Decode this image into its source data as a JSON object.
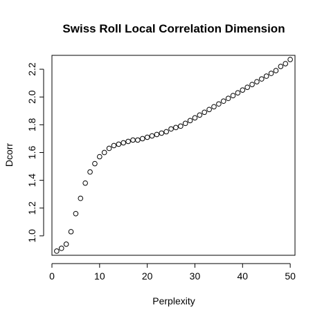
{
  "chart_data": {
    "type": "scatter",
    "title": "Swiss Roll Local Correlation Dimension",
    "xlabel": "Perplexity",
    "ylabel": "Dcorr",
    "xlim": [
      0,
      51
    ],
    "ylim": [
      0.86,
      2.3
    ],
    "xticks": [
      0,
      10,
      20,
      30,
      40,
      50
    ],
    "yticks": [
      1.0,
      1.2,
      1.4,
      1.6,
      1.8,
      2.0,
      2.2
    ],
    "xtick_labels": [
      "0",
      "10",
      "20",
      "30",
      "40",
      "50"
    ],
    "ytick_labels": [
      "1.0",
      "1.2",
      "1.4",
      "1.6",
      "1.8",
      "2.0",
      "2.2"
    ],
    "grid": false,
    "marker": "open-circle",
    "x": [
      1,
      2,
      3,
      4,
      5,
      6,
      7,
      8,
      9,
      10,
      11,
      12,
      13,
      14,
      15,
      16,
      17,
      18,
      19,
      20,
      21,
      22,
      23,
      24,
      25,
      26,
      27,
      28,
      29,
      30,
      31,
      32,
      33,
      34,
      35,
      36,
      37,
      38,
      39,
      40,
      41,
      42,
      43,
      44,
      45,
      46,
      47,
      48,
      49,
      50
    ],
    "y": [
      0.89,
      0.91,
      0.94,
      1.03,
      1.16,
      1.27,
      1.38,
      1.46,
      1.52,
      1.57,
      1.6,
      1.63,
      1.65,
      1.66,
      1.67,
      1.68,
      1.69,
      1.69,
      1.7,
      1.71,
      1.72,
      1.73,
      1.74,
      1.75,
      1.77,
      1.78,
      1.79,
      1.81,
      1.83,
      1.85,
      1.87,
      1.89,
      1.91,
      1.93,
      1.95,
      1.97,
      1.99,
      2.01,
      2.03,
      2.05,
      2.07,
      2.09,
      2.11,
      2.13,
      2.15,
      2.17,
      2.19,
      2.22,
      2.24,
      2.27
    ]
  }
}
